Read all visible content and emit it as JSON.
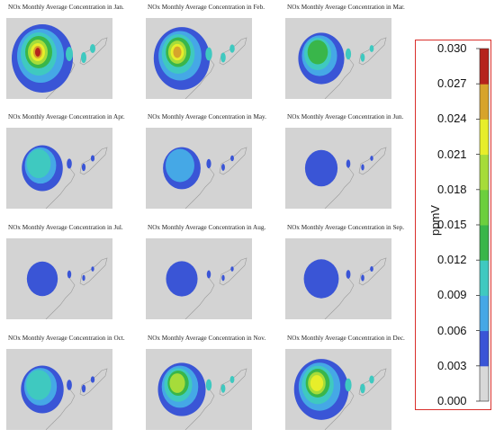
{
  "panels": [
    {
      "title": "NOx Monthly Average Concentration in Jan.",
      "level": 1.0
    },
    {
      "title": "NOx Monthly Average Concentration in Feb.",
      "level": 0.85
    },
    {
      "title": "NOx Monthly Average Concentration in Mar.",
      "level": 0.55
    },
    {
      "title": "NOx Monthly Average Concentration in Apr.",
      "level": 0.4
    },
    {
      "title": "NOx Monthly Average Concentration in May.",
      "level": 0.3
    },
    {
      "title": "NOx Monthly Average Concentration in Jun.",
      "level": 0.15
    },
    {
      "title": "NOx Monthly Average Concentration in Jul.",
      "level": 0.1
    },
    {
      "title": "NOx Monthly Average Concentration in Aug.",
      "level": 0.12
    },
    {
      "title": "NOx Monthly Average Concentration in Sep.",
      "level": 0.22
    },
    {
      "title": "NOx Monthly Average Concentration in Oct.",
      "level": 0.45
    },
    {
      "title": "NOx Monthly Average Concentration in Nov.",
      "level": 0.6
    },
    {
      "title": "NOx Monthly Average Concentration in Dec.",
      "level": 0.8
    }
  ],
  "colorbar": {
    "unit": "ppmV",
    "ticks": [
      "0.000",
      "0.003",
      "0.006",
      "0.009",
      "0.012",
      "0.015",
      "0.018",
      "0.021",
      "0.024",
      "0.027",
      "0.030"
    ],
    "colors": [
      "#d8d8d8",
      "#3a55d6",
      "#45a8e6",
      "#3fc9c0",
      "#39b64a",
      "#6ccf3e",
      "#a6dc3a",
      "#e7ee2a",
      "#d7a42b",
      "#b5241c"
    ]
  },
  "map_colors": {
    "background": "#d3d3d3",
    "land_outline": "#9a9a9a"
  }
}
